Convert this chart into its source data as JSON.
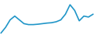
{
  "x": [
    0,
    1,
    2,
    3,
    4,
    5,
    6,
    7,
    8,
    9,
    10,
    11,
    12,
    13,
    14,
    15,
    16,
    17,
    18,
    19,
    20
  ],
  "y": [
    4.5,
    7.5,
    11.5,
    13.5,
    11.5,
    9.5,
    9.0,
    9.0,
    9.2,
    9.5,
    9.8,
    10.0,
    10.5,
    11.5,
    14.5,
    19.5,
    16.5,
    11.0,
    13.5,
    13.0,
    14.5
  ],
  "line_color": "#2196c8",
  "linewidth": 1.2,
  "background_color": "#ffffff",
  "ylim": [
    3.5,
    22
  ],
  "xlim": [
    -0.2,
    20.2
  ]
}
